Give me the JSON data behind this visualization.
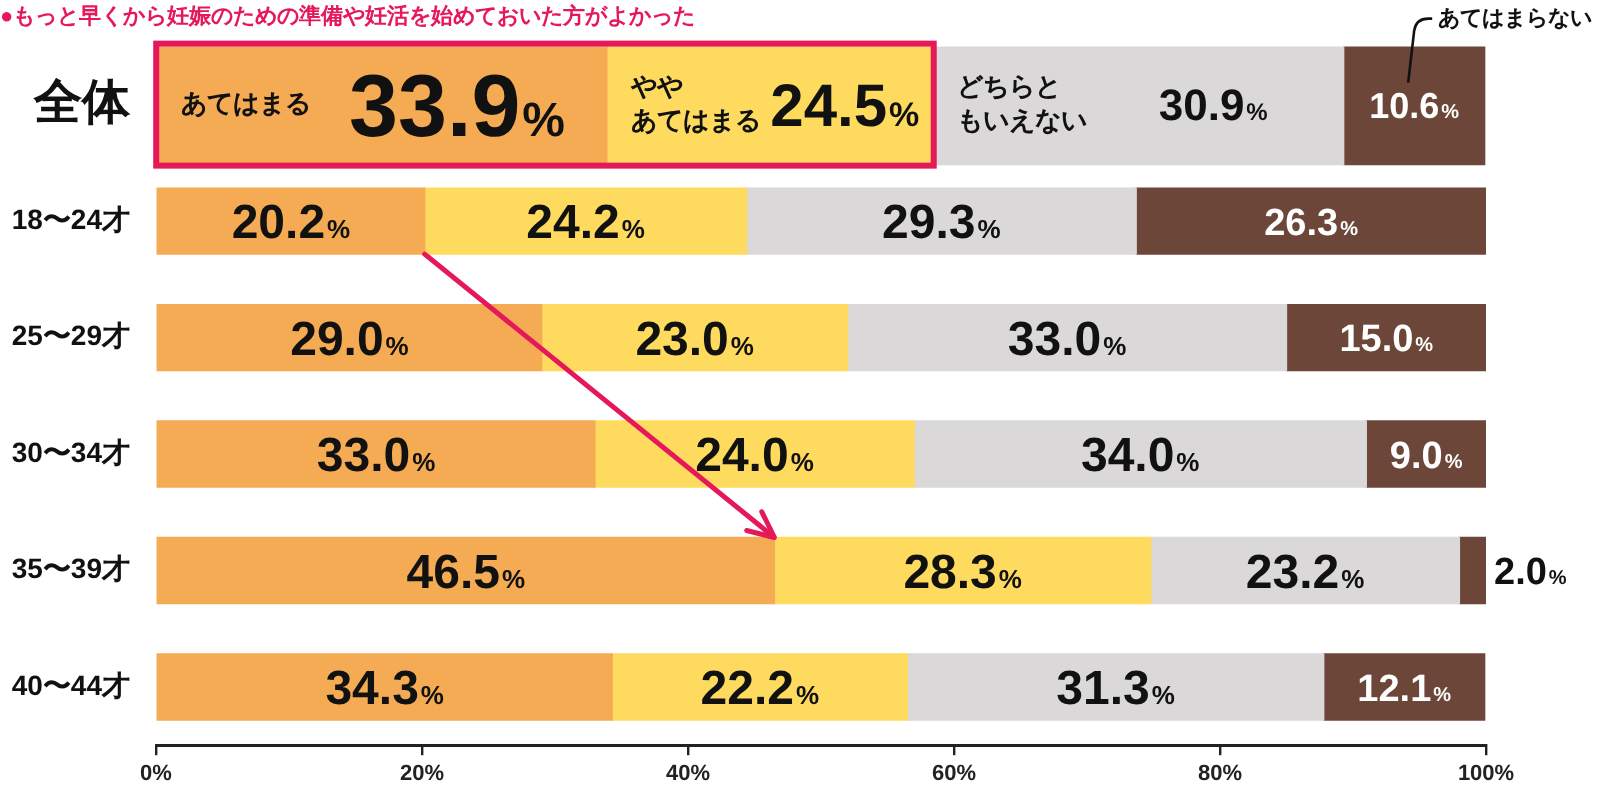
{
  "chart_data": {
    "type": "bar",
    "orientation": "horizontal",
    "stacked": true,
    "title": "●もっと早くから妊娠のための準備や妊活を始めておいた方がよかった",
    "categories": [
      "全体",
      "18〜24才",
      "25〜29才",
      "30〜34才",
      "35〜39才",
      "40〜44才"
    ],
    "series": [
      {
        "name": "あてはまる",
        "color": "#f5ab53",
        "values": [
          33.9,
          20.2,
          29.0,
          33.0,
          46.5,
          34.3
        ],
        "value_labels": [
          "33.9%",
          "20.2%",
          "29.0%",
          "33.0%",
          "46.5%",
          "34.3%"
        ]
      },
      {
        "name": "ややあてはまる",
        "color": "#fedb5e",
        "values": [
          24.5,
          24.2,
          23.0,
          24.0,
          28.3,
          22.2
        ],
        "value_labels": [
          "24.5%",
          "24.2%",
          "23.0%",
          "24.0%",
          "28.3%",
          "22.2%"
        ]
      },
      {
        "name": "どちらともいえない",
        "color": "#dad8d9",
        "values": [
          30.9,
          29.3,
          33.0,
          34.0,
          23.2,
          31.3
        ],
        "value_labels": [
          "30.9%",
          "29.3%",
          "33.0%",
          "34.0%",
          "23.2%",
          "31.3%"
        ]
      },
      {
        "name": "あてはまらない",
        "color": "#6c4739",
        "values": [
          10.6,
          26.3,
          15.0,
          9.0,
          2.0,
          12.1
        ],
        "value_labels": [
          "10.6%",
          "26.3%",
          "15.0%",
          "9.0%",
          "2.0%",
          "12.1%"
        ]
      }
    ],
    "xlim": [
      0,
      100
    ],
    "xticks": [
      {
        "value": 0,
        "label": "0%"
      },
      {
        "value": 20,
        "label": "20%"
      },
      {
        "value": 40,
        "label": "40%"
      },
      {
        "value": 60,
        "label": "60%"
      },
      {
        "value": 80,
        "label": "80%"
      },
      {
        "value": 100,
        "label": "100%"
      }
    ],
    "grid": false,
    "legend": false
  }
}
